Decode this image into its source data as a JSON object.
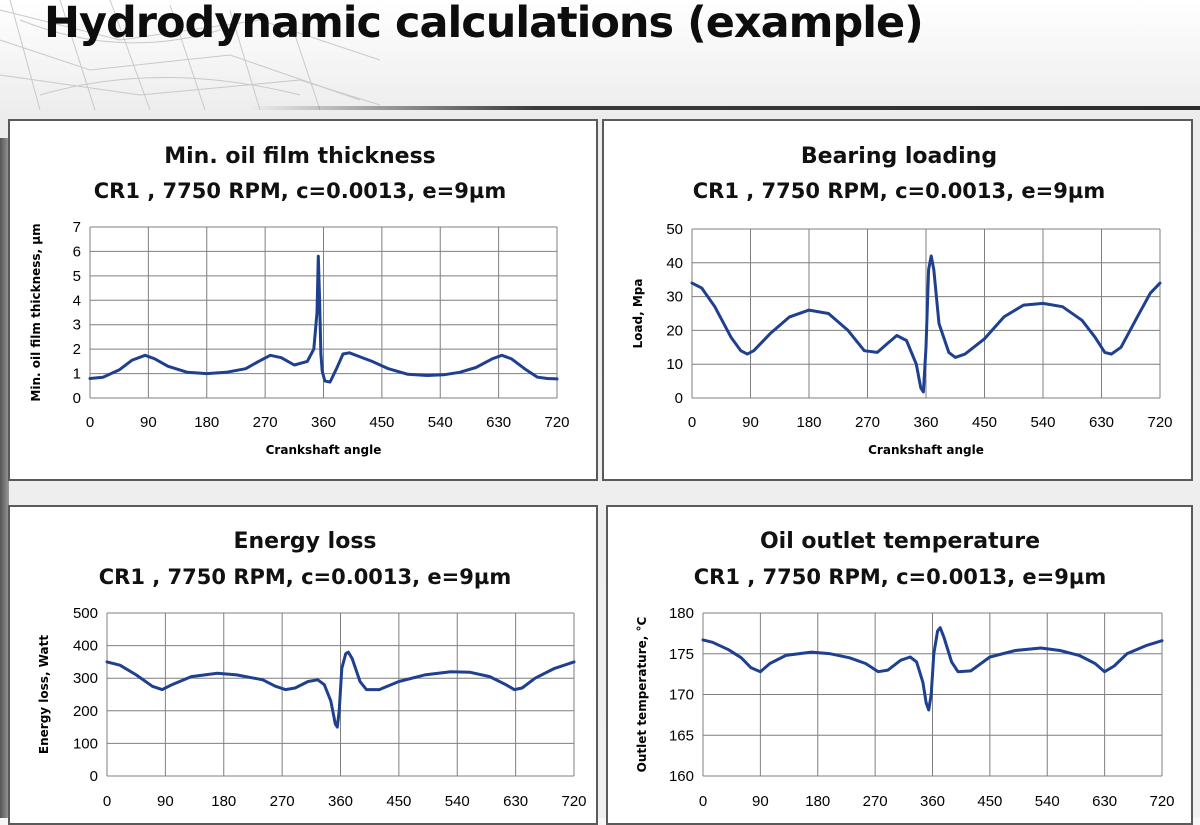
{
  "slide": {
    "title": "Hydrodynamic calculations (example)"
  },
  "chart_data": [
    {
      "type": "line",
      "title": "Min. oil film thickness",
      "subtitle": "CR1 , 7750 RPM, c=0.0013, e=9µm",
      "xlabel": "Crankshaft angle",
      "ylabel": "Min. oil film thickness, µm",
      "xlim": [
        0,
        720
      ],
      "ylim": [
        0,
        7
      ],
      "xticks": [
        0,
        90,
        180,
        270,
        360,
        450,
        540,
        630,
        720
      ],
      "yticks": [
        0,
        1,
        2,
        3,
        4,
        5,
        6,
        7
      ],
      "grid": true,
      "legend": "none",
      "color": "#1f3f8f",
      "series": [
        {
          "x": [
            0,
            20,
            45,
            65,
            85,
            100,
            120,
            150,
            180,
            210,
            240,
            260,
            278,
            295,
            315,
            335,
            345,
            350,
            352,
            354,
            356,
            358,
            362,
            370,
            380,
            390,
            400,
            415,
            435,
            460,
            490,
            520,
            545,
            570,
            595,
            620,
            635,
            650,
            670,
            690,
            705,
            720
          ],
          "y": [
            0.8,
            0.85,
            1.15,
            1.55,
            1.75,
            1.6,
            1.3,
            1.05,
            1.0,
            1.05,
            1.2,
            1.5,
            1.75,
            1.65,
            1.35,
            1.5,
            2.0,
            3.5,
            5.8,
            4.0,
            1.8,
            1.1,
            0.7,
            0.65,
            1.2,
            1.8,
            1.85,
            1.7,
            1.5,
            1.2,
            0.97,
            0.92,
            0.95,
            1.05,
            1.25,
            1.6,
            1.75,
            1.6,
            1.2,
            0.85,
            0.8,
            0.78
          ]
        }
      ]
    },
    {
      "type": "line",
      "title": "Bearing loading",
      "subtitle": "CR1 , 7750 RPM, c=0.0013, e=9µm",
      "xlabel": "Crankshaft angle",
      "ylabel": "Load, Mpa",
      "xlim": [
        0,
        720
      ],
      "ylim": [
        0,
        50
      ],
      "xticks": [
        0,
        90,
        180,
        270,
        360,
        450,
        540,
        630,
        720
      ],
      "yticks": [
        0,
        10,
        20,
        30,
        40,
        50
      ],
      "grid": true,
      "legend": "none",
      "color": "#1f3f8f",
      "series": [
        {
          "x": [
            0,
            15,
            35,
            60,
            75,
            85,
            95,
            120,
            150,
            180,
            210,
            240,
            265,
            285,
            300,
            315,
            330,
            345,
            352,
            356,
            360,
            364,
            368,
            372,
            380,
            395,
            405,
            420,
            450,
            480,
            510,
            540,
            570,
            600,
            620,
            635,
            645,
            660,
            685,
            705,
            720
          ],
          "y": [
            34,
            32.5,
            27,
            18,
            14,
            13,
            14,
            19,
            24,
            26,
            25,
            20,
            14,
            13.5,
            16,
            18.5,
            17,
            10,
            3,
            1.8,
            15,
            38,
            42,
            38,
            22,
            13.5,
            12,
            13,
            17.5,
            24,
            27.5,
            28,
            27,
            23,
            18,
            13.5,
            13,
            15,
            24,
            31,
            34
          ]
        }
      ]
    },
    {
      "type": "line",
      "title": "Energy loss",
      "subtitle": "CR1 , 7750 RPM, c=0.0013, e=9µm",
      "xlabel": "",
      "ylabel": "Energy loss, Watt",
      "xlim": [
        0,
        720
      ],
      "ylim": [
        0,
        500
      ],
      "xticks": [
        0,
        90,
        180,
        270,
        360,
        450,
        540,
        630,
        720
      ],
      "yticks": [
        0,
        100,
        200,
        300,
        400,
        500
      ],
      "grid": true,
      "legend": "none",
      "color": "#1f3f8f",
      "series": [
        {
          "x": [
            0,
            20,
            45,
            70,
            85,
            100,
            130,
            170,
            200,
            240,
            260,
            275,
            290,
            310,
            325,
            335,
            345,
            352,
            355,
            358,
            362,
            368,
            372,
            378,
            390,
            400,
            420,
            450,
            490,
            530,
            560,
            590,
            615,
            628,
            640,
            660,
            690,
            720
          ],
          "y": [
            350,
            340,
            310,
            275,
            265,
            280,
            305,
            315,
            310,
            295,
            275,
            265,
            270,
            290,
            295,
            280,
            230,
            160,
            150,
            200,
            330,
            375,
            380,
            360,
            290,
            265,
            265,
            290,
            310,
            320,
            318,
            305,
            280,
            265,
            270,
            300,
            330,
            350
          ]
        }
      ]
    },
    {
      "type": "line",
      "title": "Oil outlet temperature",
      "subtitle": "CR1 , 7750 RPM, c=0.0013, e=9µm",
      "xlabel": "",
      "ylabel": "Outlet temperature, °C",
      "xlim": [
        0,
        720
      ],
      "ylim": [
        160,
        180
      ],
      "xticks": [
        0,
        90,
        180,
        270,
        360,
        450,
        540,
        630,
        720
      ],
      "yticks": [
        160,
        165,
        170,
        175,
        180
      ],
      "grid": true,
      "legend": "none",
      "color": "#1f3f8f",
      "series": [
        {
          "x": [
            0,
            15,
            40,
            60,
            75,
            90,
            105,
            130,
            170,
            200,
            230,
            255,
            275,
            290,
            310,
            325,
            335,
            345,
            350,
            354,
            358,
            362,
            368,
            372,
            378,
            390,
            400,
            420,
            450,
            490,
            530,
            560,
            590,
            615,
            630,
            645,
            665,
            695,
            720
          ],
          "y": [
            176.7,
            176.4,
            175.5,
            174.5,
            173.3,
            172.8,
            173.8,
            174.8,
            175.2,
            175.0,
            174.5,
            173.8,
            172.8,
            173.0,
            174.2,
            174.6,
            174.0,
            171.5,
            169.0,
            168.1,
            170.0,
            175.0,
            177.8,
            178.2,
            177.0,
            174.0,
            172.8,
            172.9,
            174.6,
            175.4,
            175.7,
            175.4,
            174.8,
            173.8,
            172.8,
            173.5,
            175.0,
            176.0,
            176.6
          ]
        }
      ]
    }
  ]
}
